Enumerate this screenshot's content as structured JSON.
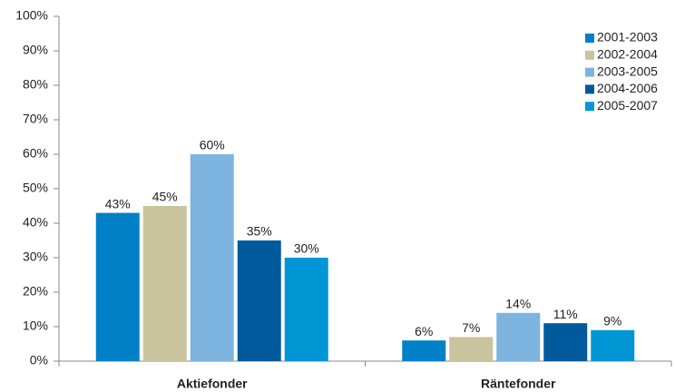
{
  "chart_data": {
    "type": "bar",
    "categories": [
      "Aktiefonder",
      "Räntefonder"
    ],
    "series": [
      {
        "name": "2001-2003",
        "color": "#0080c6",
        "values": [
          43,
          6
        ],
        "value_labels": [
          "43%",
          "6%"
        ]
      },
      {
        "name": "2002-2004",
        "color": "#c9c49d",
        "values": [
          45,
          7
        ],
        "value_labels": [
          "45%",
          "7%"
        ]
      },
      {
        "name": "2003-2005",
        "color": "#7db4e0",
        "values": [
          60,
          14
        ],
        "value_labels": [
          "60%",
          "14%"
        ]
      },
      {
        "name": "2004-2006",
        "color": "#005a9b",
        "values": [
          35,
          11
        ],
        "value_labels": [
          "35%",
          "11%"
        ]
      },
      {
        "name": "2005-2007",
        "color": "#0096d6",
        "values": [
          30,
          9
        ],
        "value_labels": [
          "30%",
          "9%"
        ]
      }
    ],
    "ylim": [
      0,
      100
    ],
    "yticks": [
      {
        "value": 0,
        "label": "0%"
      },
      {
        "value": 10,
        "label": "10%"
      },
      {
        "value": 20,
        "label": "20%"
      },
      {
        "value": 30,
        "label": "30%"
      },
      {
        "value": 40,
        "label": "40%"
      },
      {
        "value": 50,
        "label": "50%"
      },
      {
        "value": 60,
        "label": "60%"
      },
      {
        "value": 70,
        "label": "70%"
      },
      {
        "value": 80,
        "label": "80%"
      },
      {
        "value": 90,
        "label": "90%"
      },
      {
        "value": 100,
        "label": "100%"
      }
    ],
    "legend": "top-right"
  }
}
